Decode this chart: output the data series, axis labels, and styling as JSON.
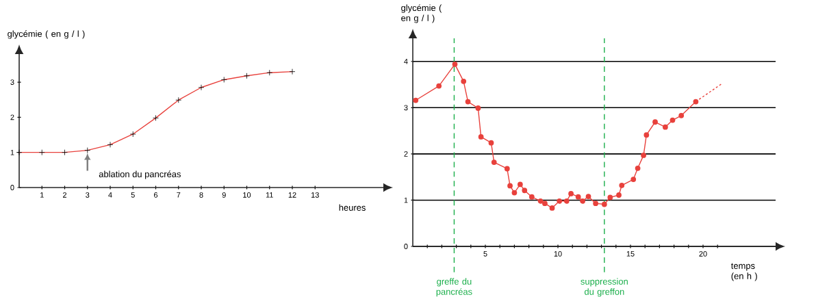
{
  "chart_data": [
    {
      "type": "line",
      "xlabel": "heures",
      "ylabel": "glycémie ( en g / l )",
      "x": [
        0,
        1,
        2,
        3,
        4,
        5,
        6,
        7,
        8,
        9,
        10,
        11,
        12
      ],
      "series": [
        {
          "color": "#e8413c",
          "values": [
            1.0,
            1.0,
            1.0,
            1.06,
            1.22,
            1.52,
            1.98,
            2.49,
            2.85,
            3.07,
            3.18,
            3.27,
            3.3
          ]
        }
      ],
      "xlim": [
        0,
        16
      ],
      "ylim": [
        0,
        3.8
      ],
      "xticks": [
        1,
        2,
        3,
        4,
        5,
        6,
        7,
        8,
        9,
        10,
        11,
        12,
        13
      ],
      "yticks": [
        0,
        1,
        2,
        3
      ],
      "marker": "cross",
      "annotations": [
        {
          "text": "ablation du pancréas",
          "x": 3,
          "y": 1.06
        }
      ]
    },
    {
      "type": "line",
      "xlabel": "temps (en h )",
      "ylabel": "glycémie ( en g / l )",
      "series": [
        {
          "color": "#e8413c",
          "x": [
            0.2,
            1.8,
            2.9,
            3.5,
            3.8,
            4.5,
            4.7,
            5.4,
            5.6,
            6.5,
            6.7,
            7.0,
            7.4,
            7.7,
            8.2,
            8.8,
            9.1,
            9.6,
            10.1,
            10.6,
            10.9,
            11.4,
            11.7,
            12.1,
            12.6,
            13.2,
            13.6,
            14.2,
            14.4,
            15.2,
            15.5,
            15.9,
            16.1,
            16.7,
            17.4,
            17.9,
            18.5,
            19.5
          ],
          "values": [
            3.16,
            3.47,
            3.94,
            3.57,
            3.13,
            2.99,
            2.37,
            2.24,
            1.82,
            1.68,
            1.31,
            1.16,
            1.34,
            1.21,
            1.07,
            0.98,
            0.93,
            0.83,
            0.98,
            0.98,
            1.14,
            1.07,
            0.98,
            1.08,
            0.93,
            0.91,
            1.06,
            1.11,
            1.32,
            1.45,
            1.69,
            1.97,
            2.41,
            2.69,
            2.58,
            2.73,
            2.83,
            3.13
          ]
        },
        {
          "color": "#e8413c",
          "x": [
            19.5,
            21.3
          ],
          "values": [
            3.13,
            3.52
          ],
          "line_style": "dashed",
          "marker": "none"
        }
      ],
      "xlim": [
        0,
        25
      ],
      "ylim": [
        0,
        4.5
      ],
      "xticks": [
        {
          "value": 1,
          "label": null
        },
        {
          "value": 2,
          "label": null
        },
        {
          "value": 3,
          "label": null
        },
        {
          "value": 4,
          "label": null
        },
        5,
        {
          "value": 6,
          "label": null
        },
        {
          "value": 7,
          "label": null
        },
        {
          "value": 8,
          "label": null
        },
        {
          "value": 9,
          "label": null
        },
        10,
        {
          "value": 11,
          "label": null
        },
        {
          "value": 12,
          "label": null
        },
        {
          "value": 13,
          "label": null
        },
        {
          "value": 14,
          "label": null
        },
        15,
        {
          "value": 16,
          "label": null
        },
        {
          "value": 17,
          "label": null
        },
        {
          "value": 18,
          "label": null
        },
        {
          "value": 19,
          "label": null
        },
        20,
        {
          "value": 21,
          "label": null
        }
      ],
      "yticks": [
        0,
        1,
        2,
        3,
        4
      ],
      "grid": "y",
      "marker": "circle",
      "ref_lines": [
        {
          "axis": "x",
          "value": 2.85,
          "label": "greffe du pancréas",
          "color": "#1aae4a",
          "line_style": "dashed"
        },
        {
          "axis": "x",
          "value": 13.2,
          "label": "suppression du greffon",
          "color": "#1aae4a",
          "line_style": "dashed"
        }
      ]
    }
  ]
}
